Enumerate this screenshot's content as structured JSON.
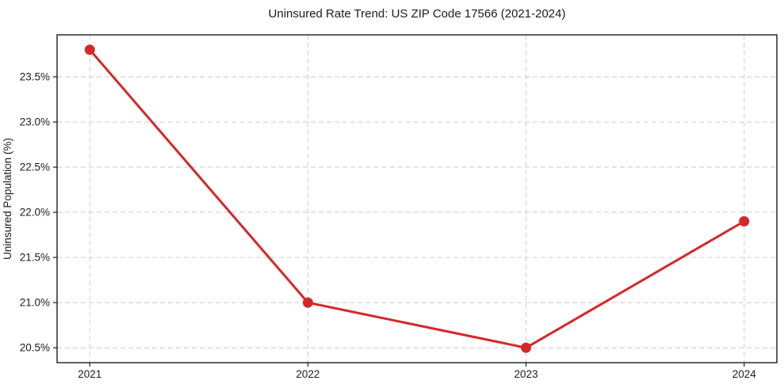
{
  "chart_data": {
    "type": "line",
    "title": "Uninsured Rate Trend: US ZIP Code 17566 (2021-2024)",
    "xlabel": "",
    "ylabel": "Uninsured Population (%)",
    "categories": [
      "2021",
      "2022",
      "2023",
      "2024"
    ],
    "series": [
      {
        "name": "Uninsured Rate",
        "values": [
          23.8,
          21.0,
          20.5,
          21.9
        ]
      }
    ],
    "ylim": [
      20.335,
      23.965
    ],
    "yticks": [
      20.5,
      21.0,
      21.5,
      22.0,
      22.5,
      23.0,
      23.5
    ],
    "ytick_suffix": "%",
    "grid": "dashed",
    "legend_visible": false,
    "colors": {
      "line": "#d62728",
      "marker": "#d62728",
      "grid": "#d0d0d0",
      "spine": "#1c1c1c",
      "text": "#1c1c1c",
      "background": "#ffffff"
    }
  }
}
